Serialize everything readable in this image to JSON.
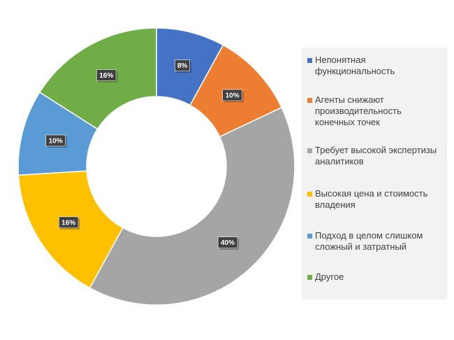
{
  "chart_data": {
    "type": "pie",
    "variant": "donut",
    "categories": [
      "Непонятная функциональность",
      "Агенты снижают производительность конечных точек",
      "Требует высокой экспертизы аналитиков",
      "Высокая цена и стоимость владения",
      "Подход в целом слишком сложный и затратный",
      "Другое"
    ],
    "values": [
      8,
      10,
      40,
      16,
      10,
      16
    ],
    "value_labels": [
      "8%",
      "10%",
      "40%",
      "16%",
      "10%",
      "16%"
    ],
    "colors": [
      "#4472c4",
      "#ed7d31",
      "#a5a5a5",
      "#ffc000",
      "#5b9bd5",
      "#70ad47"
    ],
    "legend_position": "right",
    "title": ""
  }
}
